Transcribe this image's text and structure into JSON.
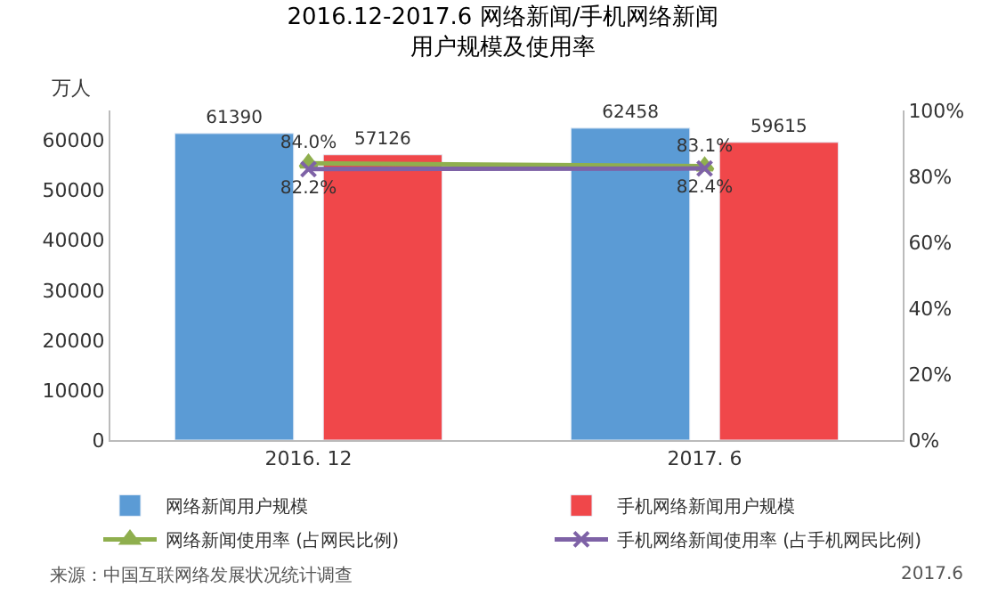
{
  "chart_data": {
    "type": "bar",
    "title": "2016.12-2017.6 网络新闻/手机网络新闻",
    "subtitle": "用户规模及使用率",
    "ylabel": "万人",
    "categories": [
      "2016. 12",
      "2017. 6"
    ],
    "series": [
      {
        "name": "网络新闻用户规模",
        "color": "#5b9bd5",
        "values": [
          61390,
          62458
        ],
        "value_labels": [
          "61390",
          "62458"
        ]
      },
      {
        "name": "手机网络新闻用户规模",
        "color": "#f0474a",
        "values": [
          57126,
          59615
        ],
        "value_labels": [
          "57126",
          "59615"
        ]
      },
      {
        "name": "网络新闻使用率 (占网民比例)",
        "type": "line",
        "axis": "y2",
        "color": "#8faf4e",
        "marker": "triangle",
        "values": [
          84.0,
          83.1
        ],
        "value_labels": [
          "84.0%",
          "83.1%"
        ]
      },
      {
        "name": "手机网络新闻使用率 (占手机网民比例)",
        "type": "line",
        "axis": "y2",
        "color": "#7e62a6",
        "marker": "cross",
        "values": [
          82.2,
          82.4
        ],
        "value_labels": [
          "82.2%",
          "82.4%"
        ]
      }
    ],
    "ylim": [
      0,
      66000
    ],
    "yticks": [
      0,
      10000,
      20000,
      30000,
      40000,
      50000,
      60000
    ],
    "y2lim": [
      0,
      100
    ],
    "y2ticks": [
      {
        "value": 0,
        "label": "0%"
      },
      {
        "value": 20,
        "label": "20%"
      },
      {
        "value": 40,
        "label": "40%"
      },
      {
        "value": 60,
        "label": "60%"
      },
      {
        "value": 80,
        "label": "80%"
      },
      {
        "value": 100,
        "label": "100%"
      }
    ],
    "legend": "bottom",
    "annotations": [
      "来源：中国互联网络发展状况统计调查",
      "2017.6"
    ]
  }
}
